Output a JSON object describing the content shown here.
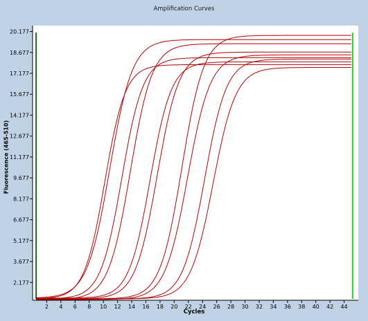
{
  "chart_data": {
    "type": "line",
    "title": "Amplification Curves",
    "xlabel": "Cycles",
    "ylabel": "Fluorescence (465-510)",
    "xlim": [
      0,
      46
    ],
    "ylim": [
      0.9,
      20.6
    ],
    "xticks": [
      2,
      4,
      6,
      8,
      10,
      12,
      14,
      16,
      18,
      20,
      22,
      24,
      26,
      28,
      30,
      32,
      34,
      36,
      38,
      40,
      42,
      44
    ],
    "yticks": [
      2.177,
      3.677,
      5.177,
      6.677,
      8.177,
      9.677,
      11.177,
      12.677,
      14.177,
      15.677,
      17.177,
      18.677,
      20.177
    ],
    "grid": false,
    "vertical_markers": [
      {
        "x": 0.5,
        "color": "#1f5f1f"
      },
      {
        "x": 45.2,
        "color": "#22cc22"
      }
    ],
    "series_style": {
      "color": "#b40000"
    },
    "curve_params": [
      {
        "baseline": 1.0,
        "max": 17.8,
        "midpoint": 10.2,
        "slope": 1.45
      },
      {
        "baseline": 1.05,
        "max": 19.6,
        "midpoint": 10.9,
        "slope": 1.6
      },
      {
        "baseline": 1.0,
        "max": 18.3,
        "midpoint": 12.6,
        "slope": 1.5
      },
      {
        "baseline": 0.95,
        "max": 19.3,
        "midpoint": 13.8,
        "slope": 1.55
      },
      {
        "baseline": 1.05,
        "max": 18.0,
        "midpoint": 16.6,
        "slope": 1.5
      },
      {
        "baseline": 1.0,
        "max": 18.7,
        "midpoint": 17.6,
        "slope": 1.55
      },
      {
        "baseline": 1.0,
        "max": 19.9,
        "midpoint": 21.1,
        "slope": 1.55
      },
      {
        "baseline": 0.95,
        "max": 18.5,
        "midpoint": 21.9,
        "slope": 1.6
      },
      {
        "baseline": 1.0,
        "max": 18.2,
        "midpoint": 24.3,
        "slope": 1.55
      },
      {
        "baseline": 1.0,
        "max": 17.6,
        "midpoint": 25.5,
        "slope": 1.6
      }
    ]
  }
}
